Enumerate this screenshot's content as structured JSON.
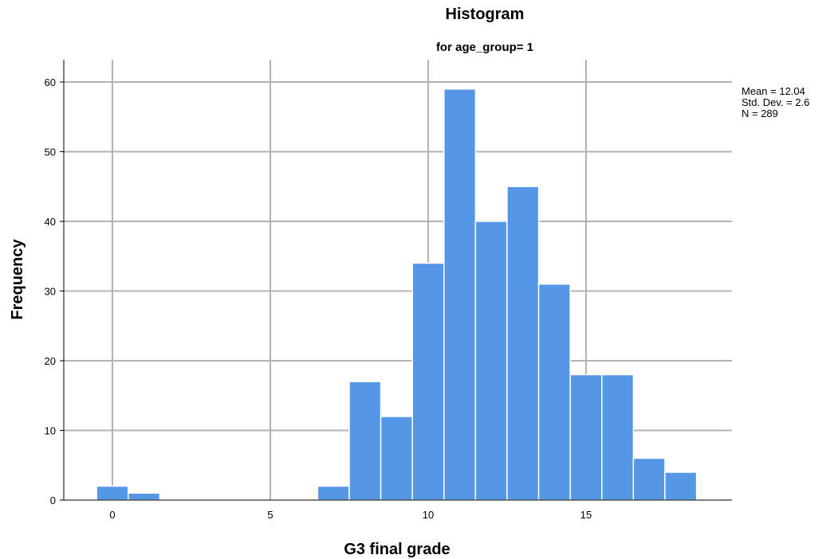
{
  "chart_data": {
    "type": "bar",
    "title": "Histogram",
    "subtitle": "for age_group= 1",
    "xlabel": "G3 final grade",
    "ylabel": "Frequency",
    "xlim": [
      -1.5,
      19.5
    ],
    "ylim": [
      0,
      63
    ],
    "x_ticks": [
      0,
      5,
      10,
      15
    ],
    "y_ticks": [
      0,
      10,
      20,
      30,
      40,
      50,
      60
    ],
    "bin_width": 1,
    "grid": true,
    "bar_color": "#5596e6",
    "bins": [
      {
        "x": 0,
        "count": 2
      },
      {
        "x": 1,
        "count": 1
      },
      {
        "x": 7,
        "count": 2
      },
      {
        "x": 8,
        "count": 17
      },
      {
        "x": 9,
        "count": 12
      },
      {
        "x": 10,
        "count": 34
      },
      {
        "x": 11,
        "count": 59
      },
      {
        "x": 12,
        "count": 40
      },
      {
        "x": 13,
        "count": 45
      },
      {
        "x": 14,
        "count": 31
      },
      {
        "x": 15,
        "count": 18
      },
      {
        "x": 16,
        "count": 18
      },
      {
        "x": 17,
        "count": 6
      },
      {
        "x": 18,
        "count": 4
      }
    ],
    "stats": {
      "mean": "Mean = 12.04",
      "std_dev": "Std. Dev. = 2.6",
      "n": "N = 289"
    }
  }
}
